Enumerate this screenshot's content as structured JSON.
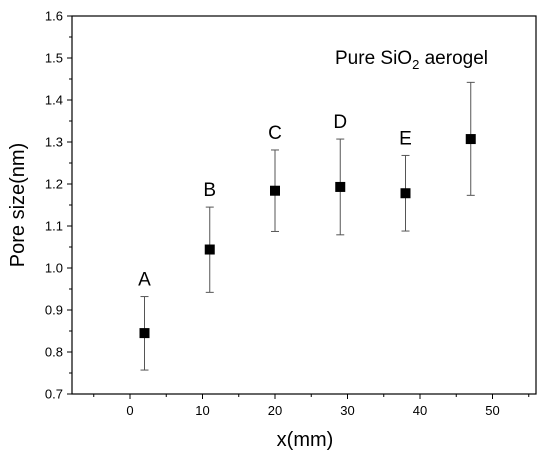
{
  "chart_data": {
    "type": "scatter",
    "xlabel": "x(mm)",
    "ylabel": "Pore size(nm)",
    "xlim": [
      -8,
      56
    ],
    "ylim": [
      0.7,
      1.6
    ],
    "x_ticks": [
      0,
      10,
      20,
      30,
      40,
      50
    ],
    "y_ticks": [
      0.7,
      0.8,
      0.9,
      1.0,
      1.1,
      1.2,
      1.3,
      1.4,
      1.5,
      1.6
    ],
    "x_tick_labels": [
      "0",
      "10",
      "20",
      "30",
      "40",
      "50"
    ],
    "y_tick_labels": [
      "0.7",
      "0.8",
      "0.9",
      "1.0",
      "1.1",
      "1.2",
      "1.3",
      "1.4",
      "1.5",
      "1.6"
    ],
    "grid": false,
    "error_bars": true,
    "points": [
      {
        "label": "A",
        "x": 2,
        "y": 0.845,
        "err_low": 0.757,
        "err_high": 0.932
      },
      {
        "label": "B",
        "x": 11,
        "y": 1.044,
        "err_low": 0.942,
        "err_high": 1.145
      },
      {
        "label": "C",
        "x": 20,
        "y": 1.184,
        "err_low": 1.087,
        "err_high": 1.281
      },
      {
        "label": "D",
        "x": 29,
        "y": 1.193,
        "err_low": 1.079,
        "err_high": 1.307
      },
      {
        "label": "E",
        "x": 38,
        "y": 1.178,
        "err_low": 1.088,
        "err_high": 1.268
      },
      {
        "label": "Pure SiO2 aerogel",
        "x": 47,
        "y": 1.307,
        "err_low": 1.173,
        "err_high": 1.442
      }
    ],
    "annotation": {
      "text_main": "Pure SiO",
      "subscript": "2",
      "text_after": " aerogel"
    },
    "colors": {
      "marker": "#000000",
      "error_bar": "#555555",
      "axis": "#000000"
    }
  }
}
